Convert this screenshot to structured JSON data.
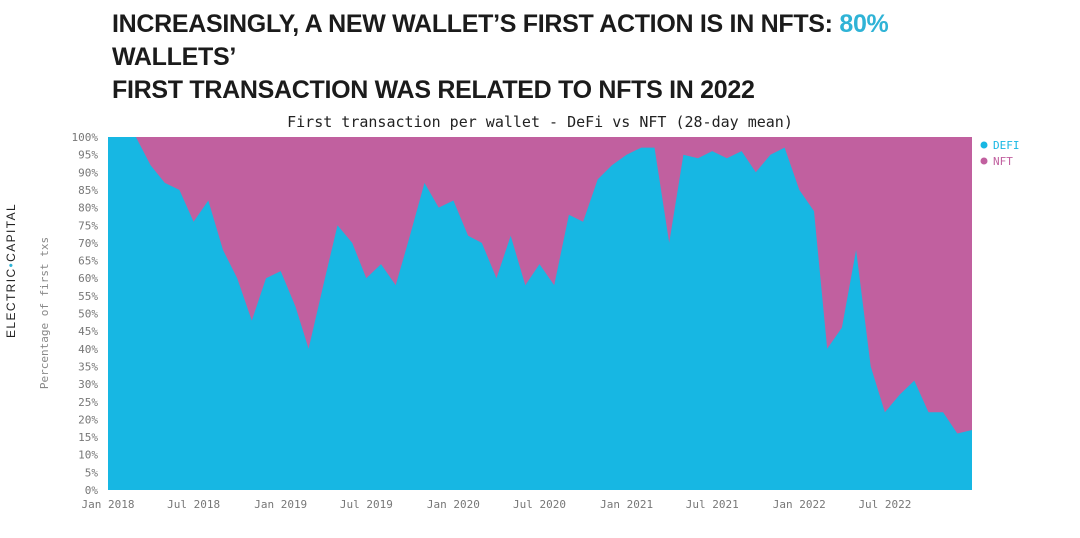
{
  "headline": {
    "part1": "INCREASINGLY, A NEW WALLET’S FIRST ACTION IS IN NFTS: ",
    "highlight": "80%",
    "part2": " WALLETS’",
    "line2": "FIRST TRANSACTION WAS RELATED TO NFTS IN 2022"
  },
  "brand": {
    "left": "ELECTRIC",
    "dot": "•",
    "right": "CAPITAL"
  },
  "colors": {
    "defi": "#17b7e3",
    "nft": "#c1609f",
    "highlight": "#2fb3d6"
  },
  "chart_data": {
    "type": "area",
    "stacked": true,
    "title": "First transaction per wallet - DeFi vs NFT (28-day mean)",
    "ylabel": "Percentage of first txs",
    "xlabel": "",
    "ylim": [
      0,
      100
    ],
    "yticks": [
      "0%",
      "5%",
      "10%",
      "15%",
      "20%",
      "25%",
      "30%",
      "35%",
      "40%",
      "45%",
      "50%",
      "55%",
      "60%",
      "65%",
      "70%",
      "75%",
      "80%",
      "85%",
      "90%",
      "95%",
      "100%"
    ],
    "xticks": [
      "Jan 2018",
      "Jul 2018",
      "Jan 2019",
      "Jul 2019",
      "Jan 2020",
      "Jul 2020",
      "Jan 2021",
      "Jul 2021",
      "Jan 2022",
      "Jul 2022"
    ],
    "legend_position": "top-right",
    "series": [
      {
        "name": "DEFI",
        "color": "#17b7e3"
      },
      {
        "name": "NFT",
        "color": "#c1609f"
      }
    ],
    "x": [
      "2018-01",
      "2018-02",
      "2018-03",
      "2018-04",
      "2018-05",
      "2018-06",
      "2018-07",
      "2018-08",
      "2018-09",
      "2018-10",
      "2018-11",
      "2018-12",
      "2019-01",
      "2019-02",
      "2019-03",
      "2019-04",
      "2019-05",
      "2019-06",
      "2019-07",
      "2019-08",
      "2019-09",
      "2019-10",
      "2019-11",
      "2019-12",
      "2020-01",
      "2020-02",
      "2020-03",
      "2020-04",
      "2020-05",
      "2020-06",
      "2020-07",
      "2020-08",
      "2020-09",
      "2020-10",
      "2020-11",
      "2020-12",
      "2021-01",
      "2021-02",
      "2021-03",
      "2021-04",
      "2021-05",
      "2021-06",
      "2021-07",
      "2021-08",
      "2021-09",
      "2021-10",
      "2021-11",
      "2021-12",
      "2022-01",
      "2022-02",
      "2022-03",
      "2022-04",
      "2022-05",
      "2022-06",
      "2022-07",
      "2022-08",
      "2022-09",
      "2022-10",
      "2022-11",
      "2022-12",
      "2023-01"
    ],
    "defi_values": [
      100,
      100,
      100,
      92,
      87,
      85,
      76,
      82,
      68,
      60,
      48,
      60,
      62,
      52,
      40,
      58,
      75,
      70,
      60,
      64,
      58,
      72,
      87,
      80,
      82,
      72,
      70,
      60,
      72,
      58,
      64,
      58,
      78,
      76,
      88,
      92,
      95,
      97,
      97,
      70,
      95,
      94,
      96,
      94,
      96,
      90,
      95,
      97,
      85,
      79,
      40,
      46,
      68,
      35,
      22,
      27,
      31,
      22,
      22,
      16,
      17
    ]
  }
}
